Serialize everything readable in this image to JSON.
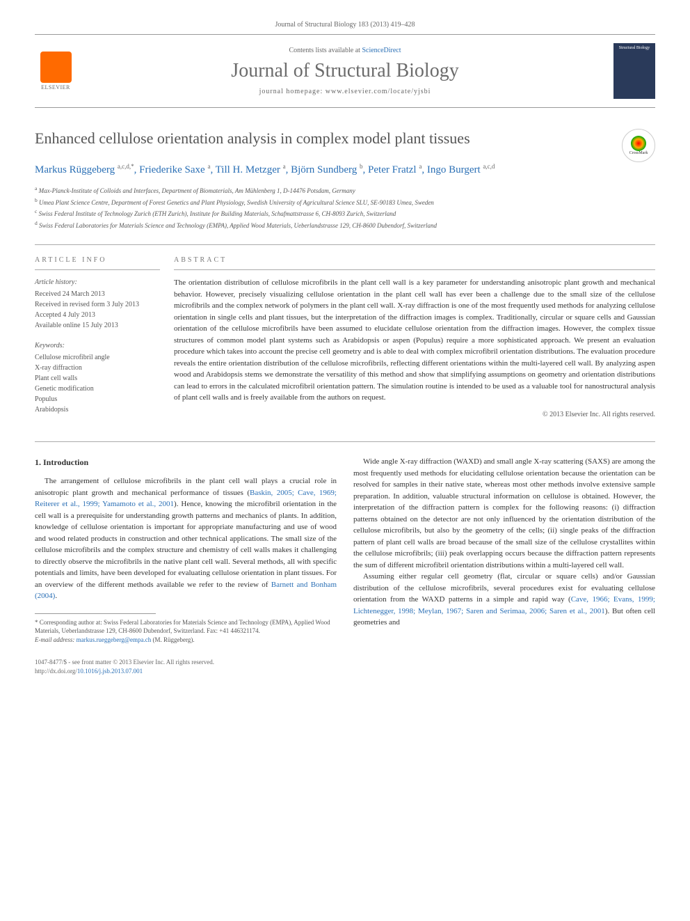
{
  "citation": "Journal of Structural Biology 183 (2013) 419–428",
  "header": {
    "contents_prefix": "Contents lists available at ",
    "contents_link": "ScienceDirect",
    "journal_title": "Journal of Structural Biology",
    "homepage_prefix": "journal homepage: ",
    "homepage_url": "www.elsevier.com/locate/yjsbi",
    "publisher_label": "ELSEVIER",
    "cover_text": "Structural Biology"
  },
  "crossmark_label": "CrossMark",
  "article": {
    "title": "Enhanced cellulose orientation analysis in complex model plant tissues",
    "authors_html": "Markus Rüggeberg <sup>a,c,d,*</sup>, Friederike Saxe <sup>a</sup>, Till H. Metzger <sup>a</sup>, Björn Sundberg <sup>b</sup>, Peter Fratzl <sup>a</sup>, Ingo Burgert <sup>a,c,d</sup>",
    "affiliations": [
      "<sup>a</sup> Max-Planck-Institute of Colloids and Interfaces, Department of Biomaterials, Am Mühlenberg 1, D-14476 Potsdam, Germany",
      "<sup>b</sup> Umea Plant Science Centre, Department of Forest Genetics and Plant Physiology, Swedish University of Agricultural Science SLU, SE-90183 Umea, Sweden",
      "<sup>c</sup> Swiss Federal Institute of Technology Zurich (ETH Zurich), Institute for Building Materials, Schafmattstrasse 6, CH-8093 Zurich, Switzerland",
      "<sup>d</sup> Swiss Federal Laboratories for Materials Science and Technology (EMPA), Applied Wood Materials, Ueberlandstrasse 129, CH-8600 Dubendorf, Switzerland"
    ]
  },
  "article_info": {
    "label": "ARTICLE INFO",
    "history_heading": "Article history:",
    "history": [
      "Received 24 March 2013",
      "Received in revised form 3 July 2013",
      "Accepted 4 July 2013",
      "Available online 15 July 2013"
    ],
    "keywords_heading": "Keywords:",
    "keywords": [
      "Cellulose microfibril angle",
      "X-ray diffraction",
      "Plant cell walls",
      "Genetic modification",
      "Populus",
      "Arabidopsis"
    ]
  },
  "abstract": {
    "label": "ABSTRACT",
    "text": "The orientation distribution of cellulose microfibrils in the plant cell wall is a key parameter for understanding anisotropic plant growth and mechanical behavior. However, precisely visualizing cellulose orientation in the plant cell wall has ever been a challenge due to the small size of the cellulose microfibrils and the complex network of polymers in the plant cell wall. X-ray diffraction is one of the most frequently used methods for analyzing cellulose orientation in single cells and plant tissues, but the interpretation of the diffraction images is complex. Traditionally, circular or square cells and Gaussian orientation of the cellulose microfibrils have been assumed to elucidate cellulose orientation from the diffraction images. However, the complex tissue structures of common model plant systems such as Arabidopsis or aspen (Populus) require a more sophisticated approach. We present an evaluation procedure which takes into account the precise cell geometry and is able to deal with complex microfibril orientation distributions. The evaluation procedure reveals the entire orientation distribution of the cellulose microfibrils, reflecting different orientations within the multi-layered cell wall. By analyzing aspen wood and Arabidopsis stems we demonstrate the versatility of this method and show that simplifying assumptions on geometry and orientation distributions can lead to errors in the calculated microfibril orientation pattern. The simulation routine is intended to be used as a valuable tool for nanostructural analysis of plant cell walls and is freely available from the authors on request.",
    "copyright": "© 2013 Elsevier Inc. All rights reserved."
  },
  "body": {
    "section_heading": "1. Introduction",
    "col1_p1": "The arrangement of cellulose microfibrils in the plant cell wall plays a crucial role in anisotropic plant growth and mechanical performance of tissues (",
    "col1_p1_link": "Baskin, 2005; Cave, 1969; Reiterer et al., 1999; Yamamoto et al., 2001",
    "col1_p1_tail": "). Hence, knowing the microfibril orientation in the cell wall is a prerequisite for understanding growth patterns and mechanics of plants. In addition, knowledge of cellulose orientation is important for appropriate manufacturing and use of wood and wood related products in construction and other technical applications. The small size of the cellulose microfibrils and the complex structure and chemistry of cell walls makes it challenging to directly observe the microfibrils in the native plant cell wall. Several methods, all with specific potentials and limits, have been developed for evaluating cellulose orientation in plant tissues. For an overview of the different methods available we refer to the review of ",
    "col1_p1_link2": "Barnett and Bonham (2004)",
    "col1_p1_end": ".",
    "col2_p1": "Wide angle X-ray diffraction (WAXD) and small angle X-ray scattering (SAXS) are among the most frequently used methods for elucidating cellulose orientation because the orientation can be resolved for samples in their native state, whereas most other methods involve extensive sample preparation. In addition, valuable structural information on cellulose is obtained. However, the interpretation of the diffraction pattern is complex for the following reasons: (i) diffraction patterns obtained on the detector are not only influenced by the orientation distribution of the cellulose microfibrils, but also by the geometry of the cells; (ii) single peaks of the diffraction pattern of plant cell walls are broad because of the small size of the cellulose crystallites within the cellulose microfibrils; (iii) peak overlapping occurs because the diffraction pattern represents the sum of different microfibril orientation distributions within a multi-layered cell wall.",
    "col2_p2": "Assuming either regular cell geometry (flat, circular or square cells) and/or Gaussian distribution of the cellulose microfibrils, several procedures exist for evaluating cellulose orientation from the WAXD patterns in a simple and rapid way (",
    "col2_p2_link": "Cave, 1966; Evans, 1999; Lichtenegger, 1998; Meylan, 1967; Saren and Serimaa, 2006; Saren et al., 2001",
    "col2_p2_tail": "). But often cell geometries and"
  },
  "footnote": {
    "corr": "* Corresponding author at: Swiss Federal Laboratories for Materials Science and Technology (EMPA), Applied Wood Materials, Ueberlandstrasse 129, CH-8600 Dubendorf, Switzerland. Fax: +41 446321174.",
    "email_label": "E-mail address: ",
    "email": "markus.rueggeberg@empa.ch",
    "email_tail": " (M. Rüggeberg)."
  },
  "footer": {
    "issn": "1047-8477/$ - see front matter © 2013 Elsevier Inc. All rights reserved.",
    "doi_label": "http://dx.doi.org/",
    "doi": "10.1016/j.jsb.2013.07.001"
  }
}
